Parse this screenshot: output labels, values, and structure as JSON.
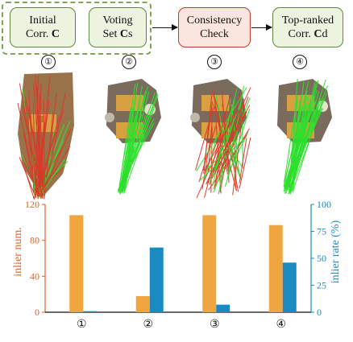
{
  "pipeline": {
    "steps": [
      {
        "line1": "Initial",
        "line2": "Corr. C"
      },
      {
        "line1": "Voting",
        "line2": "Set Cs"
      },
      {
        "line1": "Consistency",
        "line2": "Check"
      },
      {
        "line1": "Top-ranked",
        "line2": "Corr. Cd"
      }
    ]
  },
  "markers": [
    "①",
    "②",
    "③",
    "④"
  ],
  "colors": {
    "green_border": "#5c8a3a",
    "red_border": "#c0392b",
    "bar_orange": "#f0a640",
    "bar_blue": "#1b8bbf",
    "axis_left": "#e0622a",
    "axis_right": "#1b8bbf",
    "inlier_line": "#2ee02e",
    "outlier_line": "#d83a2a"
  },
  "chart_data": {
    "type": "bar",
    "categories": [
      "①",
      "②",
      "③",
      "④"
    ],
    "series": [
      {
        "values": [
          108,
          18,
          108,
          97
        ],
        "axis": "left"
      },
      {
        "values": [
          1,
          60,
          7,
          46
        ],
        "axis": "right"
      }
    ],
    "ylabel": "inlier num.",
    "y2label": "inlier rate (%)",
    "ylim": [
      0,
      120
    ],
    "y2lim": [
      0,
      100
    ],
    "yticks": [
      0,
      40,
      80,
      120
    ],
    "y2ticks": [
      0,
      25,
      50,
      75,
      100
    ]
  }
}
